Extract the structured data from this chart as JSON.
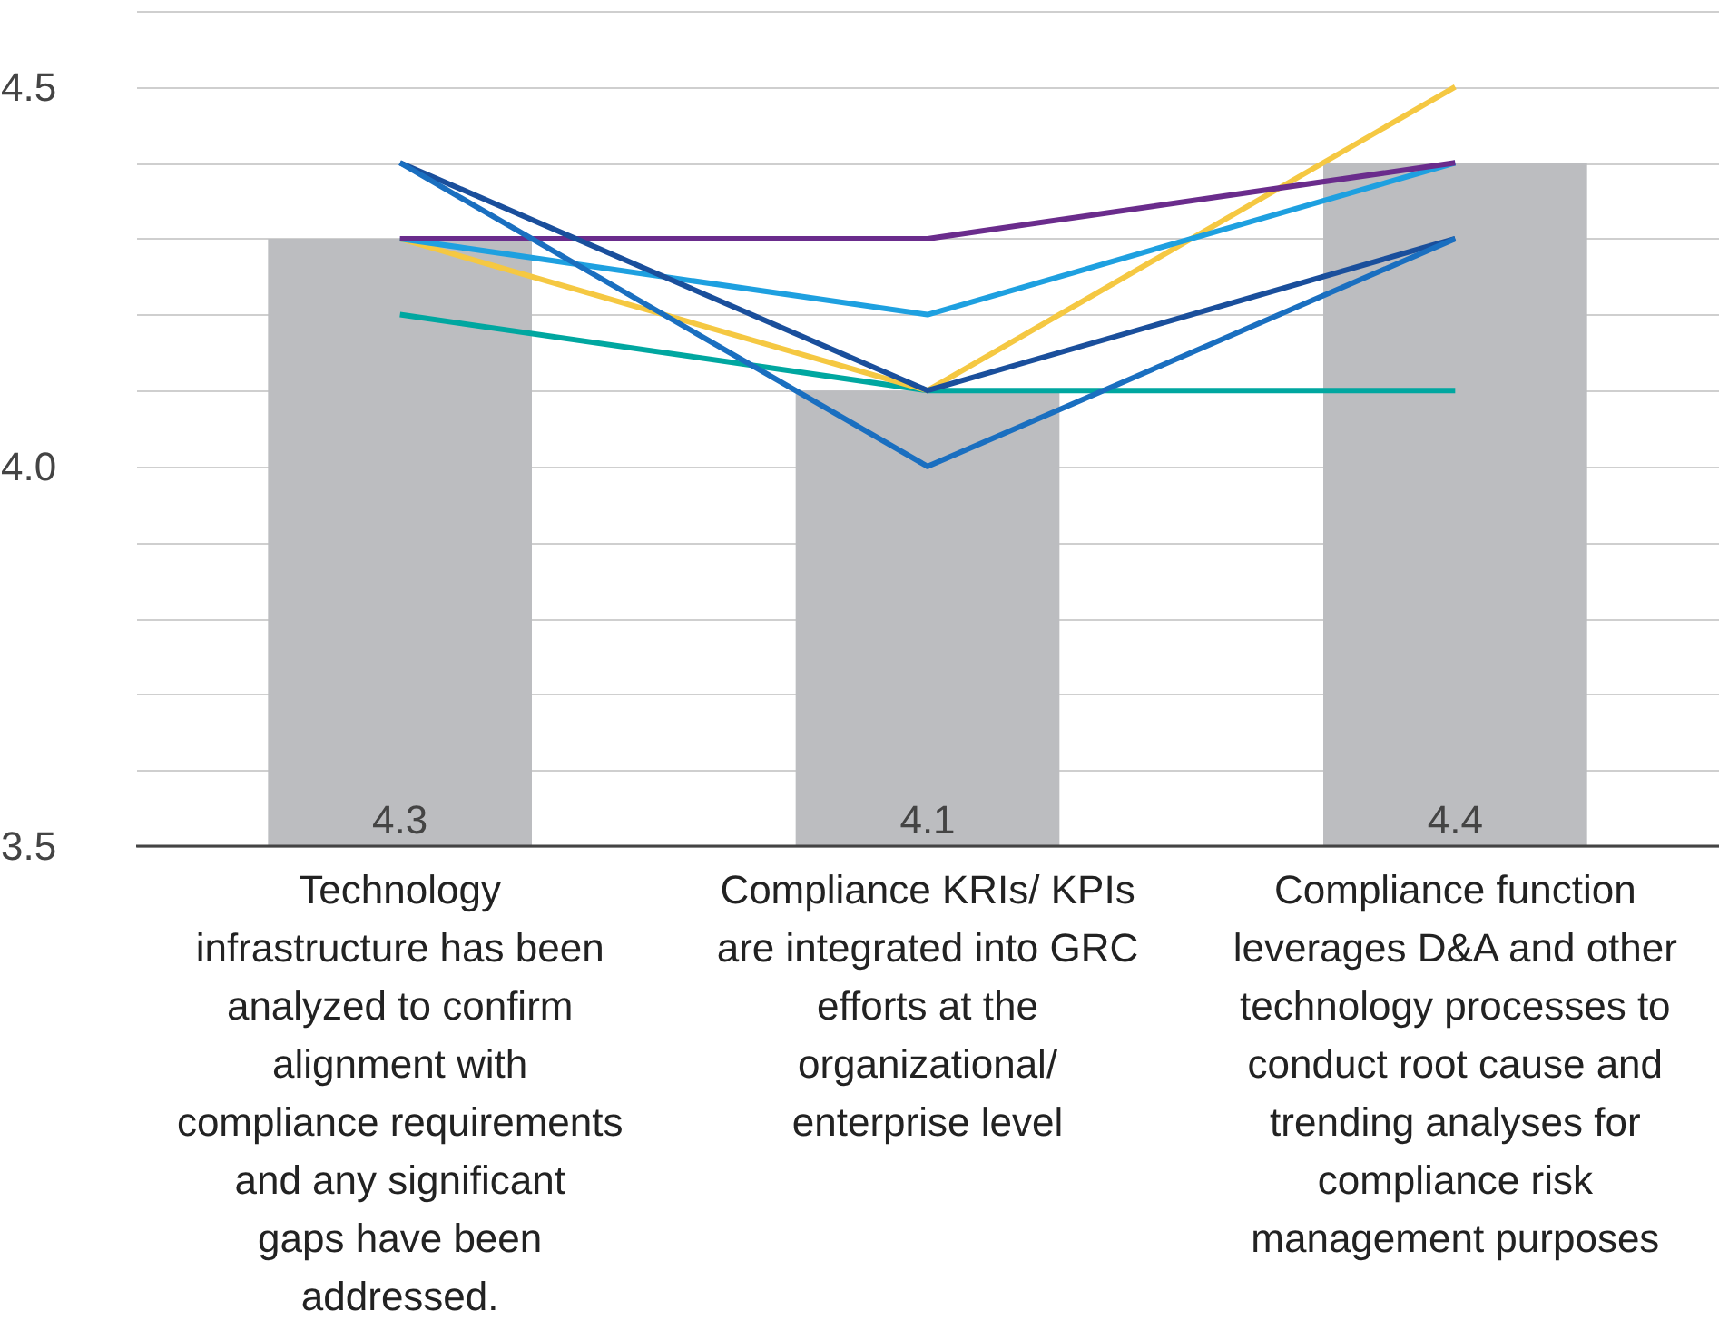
{
  "chart_data": {
    "type": "bar",
    "categories": [
      "Technology infrastructure has been analyzed to confirm alignment with compliance requirements and any significant gaps have been addressed.",
      "Compliance KRIs/ KPIs are integrated into GRC efforts at the organizational/ enterprise level",
      "Compliance function leverages D&A and other technology processes to conduct root cause and trending analyses for compliance risk management purposes"
    ],
    "series": [
      {
        "color": "#bcbdc0",
        "values": [
          4.3,
          4.1,
          4.4
        ],
        "value_labels": [
          "4.3",
          "4.1",
          "4.4"
        ]
      },
      {
        "type": "line",
        "color": "#00a7a0",
        "values": [
          4.2,
          4.1,
          4.1
        ]
      },
      {
        "type": "line",
        "color": "#f5c842",
        "values": [
          4.3,
          4.1,
          4.5
        ]
      },
      {
        "type": "line",
        "color": "#1ea0e0",
        "values": [
          4.3,
          4.2,
          4.4
        ]
      },
      {
        "type": "line",
        "color": "#6a2c8c",
        "values": [
          4.3,
          4.3,
          4.4
        ]
      },
      {
        "type": "line",
        "color": "#1a4f9c",
        "values": [
          4.4,
          4.1,
          4.3
        ]
      },
      {
        "type": "line",
        "color": "#1a6fc0",
        "values": [
          4.4,
          4.0,
          4.3
        ]
      }
    ],
    "ylim": [
      3.5,
      4.6
    ],
    "yticks": [
      3.5,
      {
        "value": 3.6,
        "label": null
      },
      {
        "value": 3.7,
        "label": null
      },
      {
        "value": 3.8,
        "label": null
      },
      {
        "value": 3.9,
        "label": null
      },
      {
        "value": 4.0,
        "label": "4.0"
      },
      {
        "value": 4.1,
        "label": null
      },
      {
        "value": 4.2,
        "label": null
      },
      {
        "value": 4.3,
        "label": null
      },
      {
        "value": 4.4,
        "label": null
      },
      4.5,
      {
        "value": 4.6,
        "label": null
      }
    ],
    "grid": "y",
    "marker": "none",
    "line_style": "solid"
  }
}
